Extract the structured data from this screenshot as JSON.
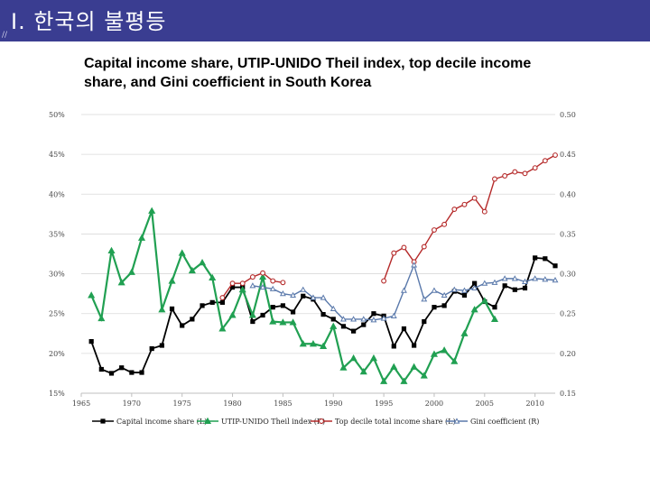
{
  "header": {
    "title": "Ⅰ. 한국의 불평등",
    "mark": "//"
  },
  "chart_data": {
    "type": "line",
    "title": "Capital income share, UTIP-UNIDO Theil index, top decile income share, and Gini coefficient in South Korea",
    "x_ticks": [
      "1965",
      "1970",
      "1975",
      "1980",
      "1985",
      "1990",
      "1995",
      "2000",
      "2005",
      "2010"
    ],
    "y_left_ticks": [
      "15%",
      "20%",
      "25%",
      "30%",
      "35%",
      "40%",
      "45%",
      "50%"
    ],
    "y_right_ticks": [
      "0.15",
      "0.20",
      "0.25",
      "0.30",
      "0.35",
      "0.40",
      "0.45",
      "0.50"
    ],
    "xlim": [
      1965,
      2012
    ],
    "ylim": [
      15,
      50
    ],
    "grid": "horizontal",
    "legend_position": "bottom",
    "series": [
      {
        "name": "Capital income share (L)",
        "axis": "left",
        "color": "#000000",
        "marker": "square",
        "points": [
          [
            1966,
            21.5
          ],
          [
            1967,
            18
          ],
          [
            1968,
            17.5
          ],
          [
            1969,
            18.2
          ],
          [
            1970,
            17.6
          ],
          [
            1971,
            17.6
          ],
          [
            1972,
            20.6
          ],
          [
            1973,
            21
          ],
          [
            1974,
            25.6
          ],
          [
            1975,
            23.5
          ],
          [
            1976,
            24.3
          ],
          [
            1977,
            26
          ],
          [
            1978,
            26.4
          ],
          [
            1979,
            26.4
          ],
          [
            1980,
            28.3
          ],
          [
            1981,
            28.3
          ],
          [
            1982,
            24
          ],
          [
            1983,
            24.8
          ],
          [
            1984,
            25.8
          ],
          [
            1985,
            26
          ],
          [
            1986,
            25.2
          ],
          [
            1987,
            27.2
          ],
          [
            1988,
            26.8
          ],
          [
            1989,
            24.9
          ],
          [
            1990,
            24.3
          ],
          [
            1991,
            23.4
          ],
          [
            1992,
            22.8
          ],
          [
            1993,
            23.6
          ],
          [
            1994,
            25
          ],
          [
            1995,
            24.7
          ],
          [
            1996,
            20.9
          ],
          [
            1997,
            23.1
          ],
          [
            1998,
            21
          ],
          [
            1999,
            24
          ],
          [
            2000,
            25.8
          ],
          [
            2001,
            26
          ],
          [
            2002,
            27.8
          ],
          [
            2003,
            27.3
          ],
          [
            2004,
            28.8
          ],
          [
            2005,
            26.5
          ],
          [
            2006,
            25.8
          ],
          [
            2007,
            28.5
          ],
          [
            2008,
            28
          ],
          [
            2009,
            28.2
          ],
          [
            2010,
            32
          ],
          [
            2011,
            31.9
          ],
          [
            2012,
            31
          ]
        ]
      },
      {
        "name": "UTIP-UNIDO Theil index (R)",
        "axis": "right",
        "color": "#21a052",
        "marker": "triangle",
        "points": [
          [
            1966,
            0.273
          ],
          [
            1967,
            0.244
          ],
          [
            1968,
            0.329
          ],
          [
            1969,
            0.289
          ],
          [
            1970,
            0.302
          ],
          [
            1971,
            0.345
          ],
          [
            1972,
            0.379
          ],
          [
            1973,
            0.255
          ],
          [
            1974,
            0.291
          ],
          [
            1975,
            0.326
          ],
          [
            1976,
            0.304
          ],
          [
            1977,
            0.314
          ],
          [
            1978,
            0.295
          ],
          [
            1979,
            0.231
          ],
          [
            1980,
            0.248
          ],
          [
            1981,
            0.28
          ],
          [
            1982,
            0.248
          ],
          [
            1983,
            0.296
          ],
          [
            1984,
            0.24
          ],
          [
            1985,
            0.239
          ],
          [
            1986,
            0.239
          ],
          [
            1987,
            0.212
          ],
          [
            1988,
            0.212
          ],
          [
            1989,
            0.209
          ],
          [
            1990,
            0.234
          ],
          [
            1991,
            0.182
          ],
          [
            1992,
            0.194
          ],
          [
            1993,
            0.177
          ],
          [
            1994,
            0.194
          ],
          [
            1995,
            0.165
          ],
          [
            1996,
            0.183
          ],
          [
            1997,
            0.165
          ],
          [
            1998,
            0.183
          ],
          [
            1999,
            0.172
          ],
          [
            2000,
            0.199
          ],
          [
            2001,
            0.204
          ],
          [
            2002,
            0.19
          ],
          [
            2003,
            0.225
          ],
          [
            2004,
            0.255
          ],
          [
            2005,
            0.266
          ],
          [
            2006,
            0.243
          ]
        ]
      },
      {
        "name": "Top decile total income share (L)",
        "axis": "left",
        "color": "#b52a2a",
        "marker": "circle",
        "points": [
          [
            1979,
            27
          ],
          [
            1980,
            28.8
          ],
          [
            1981,
            28.8
          ],
          [
            1982,
            29.6
          ],
          [
            1983,
            30.1
          ],
          [
            1984,
            29.1
          ],
          [
            1985,
            28.9
          ],
          [
            1995,
            29.1
          ],
          [
            1996,
            32.6
          ],
          [
            1997,
            33.3
          ],
          [
            1998,
            31.5
          ],
          [
            1999,
            33.4
          ],
          [
            2000,
            35.5
          ],
          [
            2001,
            36.2
          ],
          [
            2002,
            38.1
          ],
          [
            2003,
            38.7
          ],
          [
            2004,
            39.5
          ],
          [
            2005,
            37.8
          ],
          [
            2006,
            41.9
          ],
          [
            2007,
            42.3
          ],
          [
            2008,
            42.8
          ],
          [
            2009,
            42.6
          ],
          [
            2010,
            43.3
          ],
          [
            2011,
            44.2
          ],
          [
            2012,
            44.9
          ]
        ]
      },
      {
        "name": "Gini coefficient (R)",
        "axis": "right",
        "color": "#5a79ab",
        "marker": "triangle",
        "points": [
          [
            1982,
            0.285
          ],
          [
            1983,
            0.283
          ],
          [
            1984,
            0.281
          ],
          [
            1985,
            0.275
          ],
          [
            1986,
            0.273
          ],
          [
            1987,
            0.28
          ],
          [
            1988,
            0.27
          ],
          [
            1989,
            0.27
          ],
          [
            1990,
            0.256
          ],
          [
            1991,
            0.243
          ],
          [
            1992,
            0.243
          ],
          [
            1993,
            0.243
          ],
          [
            1994,
            0.242
          ],
          [
            1995,
            0.244
          ],
          [
            1996,
            0.247
          ],
          [
            1997,
            0.279
          ],
          [
            1998,
            0.311
          ],
          [
            1999,
            0.268
          ],
          [
            2000,
            0.279
          ],
          [
            2001,
            0.273
          ],
          [
            2002,
            0.28
          ],
          [
            2003,
            0.279
          ],
          [
            2004,
            0.282
          ],
          [
            2005,
            0.288
          ],
          [
            2006,
            0.289
          ],
          [
            2007,
            0.294
          ],
          [
            2008,
            0.294
          ],
          [
            2009,
            0.29
          ],
          [
            2010,
            0.294
          ],
          [
            2011,
            0.293
          ],
          [
            2012,
            0.292
          ]
        ]
      }
    ]
  }
}
